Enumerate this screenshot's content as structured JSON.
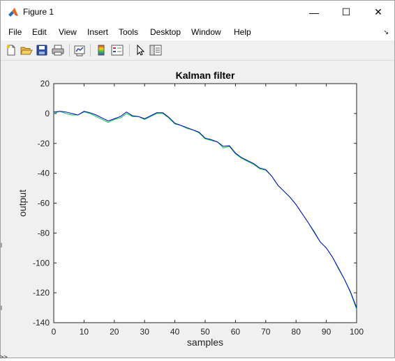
{
  "window": {
    "title": "Figure 1",
    "minimize_glyph": "—",
    "maximize_glyph": "☐",
    "close_glyph": "✕"
  },
  "menu": {
    "items": [
      "File",
      "Edit",
      "View",
      "Insert",
      "Tools",
      "Desktop",
      "Window",
      "Help"
    ],
    "dock_glyph": "↘"
  },
  "toolbar": {
    "icons": [
      "new-figure-icon",
      "open-file-icon",
      "save-icon",
      "print-icon",
      "link-plot-icon",
      "colorbar-icon",
      "legend-icon",
      "pointer-icon",
      "property-inspector-icon"
    ]
  },
  "console": {
    "prompt": ">>"
  },
  "chart_data": {
    "type": "line",
    "title": "Kalman filter",
    "xlabel": "samples",
    "ylabel": "output",
    "xlim": [
      0,
      100
    ],
    "ylim": [
      -140,
      20
    ],
    "xticks": [
      0,
      10,
      20,
      30,
      40,
      50,
      60,
      70,
      80,
      90,
      100
    ],
    "yticks": [
      20,
      0,
      -20,
      -40,
      -60,
      -80,
      -100,
      -120,
      -140
    ],
    "grid": false,
    "series": [
      {
        "color": "#00cc44",
        "x": [
          0,
          2,
          4,
          6,
          8,
          10,
          12,
          14,
          16,
          18,
          20,
          22,
          24,
          26,
          28,
          30,
          32,
          34,
          36,
          38,
          40,
          42,
          44,
          46,
          48,
          50,
          52,
          54,
          56,
          58,
          60,
          62,
          64,
          66,
          68,
          70,
          72,
          74,
          76,
          78,
          80,
          82,
          84,
          86,
          88,
          90,
          92,
          94,
          96,
          98,
          100
        ],
        "values": [
          0,
          1.5,
          0,
          -1,
          -1,
          1,
          0,
          -2,
          -4,
          -6,
          -4,
          -3,
          0,
          -2,
          -2,
          -4,
          -2,
          0,
          0,
          -3,
          -7,
          -8,
          -10,
          -11,
          -13,
          -17,
          -18,
          -19,
          -23,
          -22,
          -27,
          -30,
          -32,
          -34,
          -37,
          -38,
          -42,
          -48,
          -52,
          -56,
          -61,
          -67,
          -73,
          -79,
          -86,
          -90,
          -96,
          -104,
          -111,
          -120,
          -131
        ]
      },
      {
        "color": "#0000cc",
        "x": [
          0,
          2,
          4,
          6,
          8,
          10,
          12,
          14,
          16,
          18,
          20,
          22,
          24,
          26,
          28,
          30,
          32,
          34,
          36,
          38,
          40,
          42,
          44,
          46,
          48,
          50,
          52,
          54,
          56,
          58,
          60,
          62,
          64,
          66,
          68,
          70,
          72,
          74,
          76,
          78,
          80,
          82,
          84,
          86,
          88,
          90,
          92,
          94,
          96,
          98,
          100
        ],
        "values": [
          1,
          1.5,
          1,
          0,
          -1,
          1.5,
          0.5,
          -1,
          -3,
          -5,
          -3.5,
          -2,
          1,
          -1.5,
          -2,
          -3.5,
          -1.5,
          0.5,
          0.5,
          -2.5,
          -6.5,
          -8,
          -9.5,
          -11,
          -12.5,
          -16.5,
          -17.5,
          -19,
          -22,
          -21.5,
          -26.5,
          -29.5,
          -31.5,
          -33.5,
          -36.5,
          -37.5,
          -42,
          -48,
          -52,
          -56,
          -61,
          -67,
          -73,
          -79.5,
          -86,
          -90,
          -96,
          -103.5,
          -111,
          -119.5,
          -130
        ]
      }
    ]
  }
}
